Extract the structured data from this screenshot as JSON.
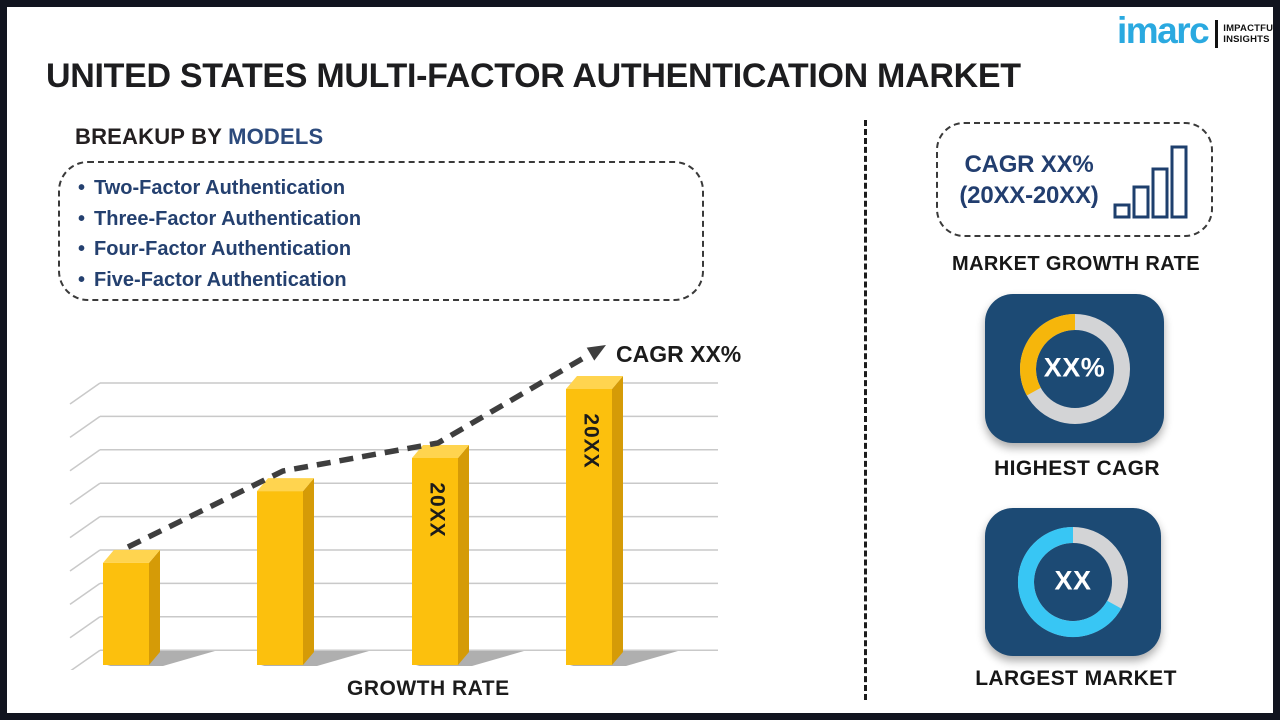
{
  "logo": {
    "brand": "imarc",
    "tagline_line1": "IMPACTFUL",
    "tagline_line2": "INSIGHTS"
  },
  "title": "UNITED STATES MULTI-FACTOR AUTHENTICATION MARKET",
  "breakup": {
    "heading_prefix": "BREAKUP BY",
    "heading_highlight": "MODELS",
    "bullet": "•",
    "items": [
      "Two-Factor Authentication",
      "Three-Factor Authentication",
      "Four-Factor Authentication",
      "Five-Factor Authentication"
    ]
  },
  "chart_data": {
    "type": "bar",
    "categories": [
      "",
      "",
      "20XX",
      "20XX"
    ],
    "values_relative_pct": [
      37,
      63,
      75,
      100
    ],
    "xlabel": "GROWTH RATE",
    "trend_label": "CAGR XX%",
    "trend_style": "dashed-arrow-up",
    "bar_color": "#FCC00D",
    "grid": true,
    "gridlines": 9,
    "legend": "none"
  },
  "sidebar": {
    "cagr_box": {
      "line1": "CAGR XX%",
      "line2": "(20XX-20XX)"
    },
    "market_growth_rate_label": "MARKET GROWTH RATE",
    "highest_cagr": {
      "value": "XX%",
      "label": "HIGHEST CAGR",
      "donut_fill_percent": 33,
      "fill_color": "#F6B60B"
    },
    "largest_market": {
      "value": "XX",
      "label": "LARGEST MARKET",
      "donut_fill_percent": 67,
      "fill_color": "#38C6F4"
    }
  },
  "colors": {
    "accent_blue": "#2AA9E0",
    "navy_text": "#24406F",
    "tile_navy": "#1C4A74",
    "bar_yellow": "#FCC00D",
    "ring_gray": "#D3D4D6",
    "frame": "#11141F"
  }
}
